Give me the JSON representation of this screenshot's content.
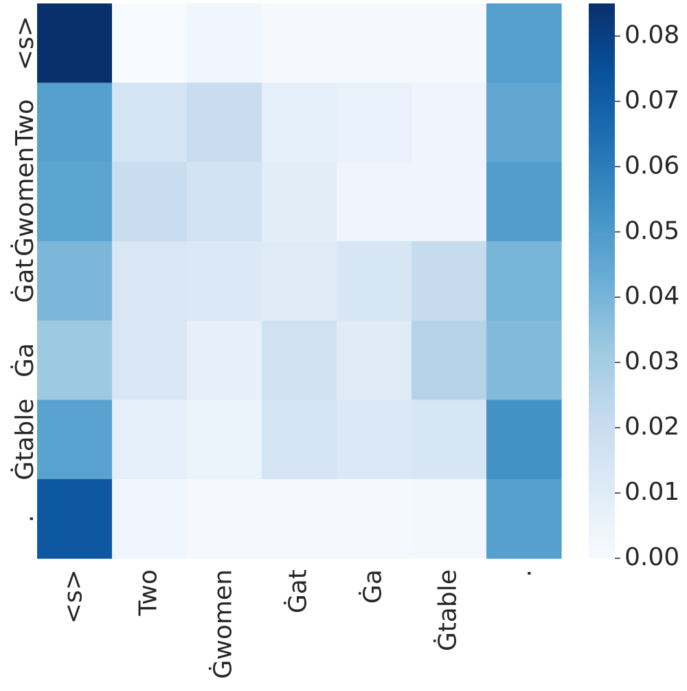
{
  "chart_data": {
    "type": "heatmap",
    "title": "",
    "xlabel": "",
    "ylabel": "",
    "x_labels": [
      "<s>",
      "Two",
      "Ġwomen",
      "Ġat",
      "Ġa",
      "Ġtable",
      "."
    ],
    "y_labels": [
      "<s>",
      "Two",
      "Ġwomen",
      "Ġat",
      "Ġa",
      "Ġtable",
      "."
    ],
    "values": [
      [
        0.085,
        0.0,
        0.003,
        0.001,
        0.001,
        0.001,
        0.048
      ],
      [
        0.048,
        0.015,
        0.02,
        0.008,
        0.006,
        0.004,
        0.045
      ],
      [
        0.046,
        0.02,
        0.016,
        0.009,
        0.004,
        0.004,
        0.049
      ],
      [
        0.039,
        0.013,
        0.012,
        0.01,
        0.014,
        0.021,
        0.04
      ],
      [
        0.032,
        0.013,
        0.007,
        0.017,
        0.01,
        0.026,
        0.038
      ],
      [
        0.047,
        0.008,
        0.005,
        0.015,
        0.012,
        0.014,
        0.053
      ],
      [
        0.072,
        0.003,
        0.001,
        0.001,
        0.001,
        0.002,
        0.048
      ]
    ],
    "colorscale": "Blues",
    "color_range": [
      0.0,
      0.085
    ],
    "colorbar_ticks": [
      "0.00",
      "0.01",
      "0.02",
      "0.03",
      "0.04",
      "0.05",
      "0.06",
      "0.07",
      "0.08"
    ],
    "colorbar_tick_values": [
      0.0,
      0.01,
      0.02,
      0.03,
      0.04,
      0.05,
      0.06,
      0.07,
      0.08
    ],
    "colors": {
      "low": "#f7fbff",
      "high": "#08306b",
      "text": "#262626"
    }
  }
}
